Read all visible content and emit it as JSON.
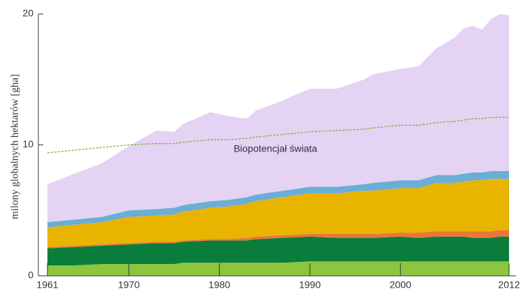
{
  "chart_data": {
    "type": "stacked_area",
    "ylabel": "milony globalnych hektarów [gha]",
    "annotation": "Biopotencjał świata",
    "x": [
      1961,
      1964,
      1967,
      1970,
      1973,
      1975,
      1976,
      1979,
      1981,
      1983,
      1984,
      1987,
      1990,
      1993,
      1996,
      1997,
      2000,
      2002,
      2004,
      2006,
      2007,
      2008,
      2009,
      2010,
      2011,
      2012
    ],
    "xlim": [
      1961,
      2012
    ],
    "xticks": [
      1961,
      1970,
      1980,
      1990,
      2000,
      2012
    ],
    "ylim": [
      0,
      20
    ],
    "yticks": [
      0,
      10,
      20
    ],
    "series": [
      {
        "color": "#8cc63f",
        "values": [
          0.8,
          0.8,
          0.9,
          0.9,
          0.9,
          0.9,
          1.0,
          1.0,
          1.0,
          1.0,
          1.0,
          1.0,
          1.1,
          1.1,
          1.1,
          1.1,
          1.1,
          1.1,
          1.1,
          1.1,
          1.1,
          1.1,
          1.1,
          1.1,
          1.1,
          1.1
        ]
      },
      {
        "color": "#0a7d3c",
        "values": [
          1.3,
          1.4,
          1.4,
          1.5,
          1.6,
          1.6,
          1.6,
          1.7,
          1.7,
          1.7,
          1.8,
          1.9,
          1.9,
          1.8,
          1.8,
          1.8,
          1.9,
          1.8,
          1.9,
          1.9,
          1.9,
          1.8,
          1.8,
          1.8,
          1.9,
          1.9
        ]
      },
      {
        "color": "#e8773a",
        "values": [
          0.1,
          0.1,
          0.1,
          0.1,
          0.1,
          0.1,
          0.1,
          0.1,
          0.1,
          0.2,
          0.2,
          0.2,
          0.2,
          0.3,
          0.3,
          0.3,
          0.3,
          0.4,
          0.4,
          0.4,
          0.4,
          0.5,
          0.5,
          0.5,
          0.5,
          0.5
        ]
      },
      {
        "color": "#e8b400",
        "values": [
          1.5,
          1.6,
          1.7,
          2.0,
          2.0,
          2.1,
          2.2,
          2.4,
          2.5,
          2.6,
          2.7,
          2.9,
          3.1,
          3.1,
          3.3,
          3.3,
          3.4,
          3.4,
          3.7,
          3.7,
          3.8,
          3.9,
          3.9,
          4.0,
          3.9,
          3.9
        ]
      },
      {
        "color": "#6aaed6",
        "values": [
          0.4,
          0.4,
          0.4,
          0.5,
          0.5,
          0.5,
          0.5,
          0.5,
          0.5,
          0.5,
          0.5,
          0.5,
          0.5,
          0.5,
          0.5,
          0.6,
          0.6,
          0.6,
          0.6,
          0.6,
          0.6,
          0.6,
          0.6,
          0.6,
          0.6,
          0.6
        ]
      },
      {
        "color": "#e4d3f3",
        "values": [
          2.9,
          3.5,
          4.1,
          4.9,
          6.0,
          5.8,
          6.2,
          6.8,
          6.4,
          6.0,
          6.4,
          6.9,
          7.5,
          7.5,
          8.0,
          8.3,
          8.5,
          8.7,
          9.7,
          10.5,
          11.1,
          11.2,
          10.9,
          11.6,
          12.0,
          11.9
        ]
      }
    ],
    "line": {
      "color": "#7aa82e",
      "dashed": true,
      "values": [
        9.4,
        9.6,
        9.8,
        10.0,
        10.1,
        10.1,
        10.2,
        10.4,
        10.4,
        10.5,
        10.6,
        10.8,
        11.0,
        11.1,
        11.2,
        11.3,
        11.5,
        11.5,
        11.7,
        11.8,
        11.9,
        12.0,
        12.0,
        12.1,
        12.1,
        12.1
      ]
    }
  }
}
